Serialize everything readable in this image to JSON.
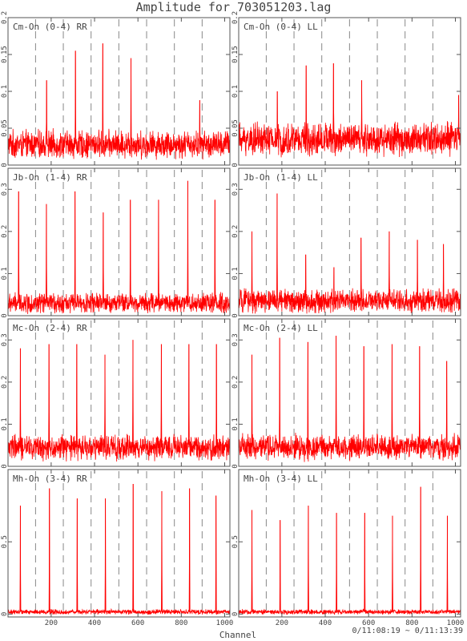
{
  "page": {
    "title": "Amplitude for 703051203.lag",
    "xlabel": "Channel",
    "time_range": "0/11:08:19 ~ 0/11:13:39"
  },
  "colors": {
    "trace": "#ff0000",
    "frame": "#555555",
    "divider": "#888888",
    "text": "#444444"
  },
  "chart_data": [
    {
      "type": "line",
      "title": "Cm-On (0-4) RR",
      "xlim": [
        1,
        1024
      ],
      "ylim": [
        0,
        0.2
      ],
      "xticks": [
        200,
        400,
        600,
        800,
        1000
      ],
      "yticks": [
        {
          "v": 0,
          "label": "0"
        },
        {
          "v": 0.05,
          "label": "0.05"
        },
        {
          "v": 0.1,
          "label": "0.1"
        },
        {
          "v": 0.15,
          "label": "0.15"
        },
        {
          "v": 0.2,
          "label": "0.2"
        }
      ],
      "dividers": [
        128,
        256,
        384,
        512,
        640,
        768,
        896
      ],
      "baseline": 0.028,
      "noise": 0.022,
      "peaks": [
        [
          179,
          0.115
        ],
        [
          312,
          0.155
        ],
        [
          438,
          0.165
        ],
        [
          568,
          0.145
        ],
        [
          885,
          0.088
        ]
      ]
    },
    {
      "type": "line",
      "title": "Cm-On (0-4) LL",
      "xlim": [
        1,
        1024
      ],
      "ylim": [
        0,
        0.2
      ],
      "xticks": [
        200,
        400,
        600,
        800,
        1000
      ],
      "yticks": [
        {
          "v": 0,
          "label": "0"
        },
        {
          "v": 0.05,
          "label": "0.05"
        },
        {
          "v": 0.1,
          "label": "0.1"
        },
        {
          "v": 0.15,
          "label": "0.15"
        },
        {
          "v": 0.2,
          "label": "0.2"
        }
      ],
      "dividers": [
        128,
        256,
        384,
        512,
        640,
        768,
        896
      ],
      "baseline": 0.035,
      "noise": 0.026,
      "peaks": [
        [
          179,
          0.1
        ],
        [
          312,
          0.135
        ],
        [
          438,
          0.138
        ],
        [
          568,
          0.115
        ],
        [
          1015,
          0.095
        ]
      ]
    },
    {
      "type": "line",
      "title": "Jb-On (1-4) RR",
      "xlim": [
        1,
        1024
      ],
      "ylim": [
        0,
        0.35
      ],
      "xticks": [
        200,
        400,
        600,
        800,
        1000
      ],
      "yticks": [
        {
          "v": 0,
          "label": "0"
        },
        {
          "v": 0.1,
          "label": "0.1"
        },
        {
          "v": 0.2,
          "label": "0.2"
        },
        {
          "v": 0.3,
          "label": "0.3"
        }
      ],
      "dividers": [
        128,
        256,
        384,
        512,
        640,
        768,
        896
      ],
      "baseline": 0.03,
      "noise": 0.028,
      "peaks": [
        [
          50,
          0.295
        ],
        [
          178,
          0.265
        ],
        [
          310,
          0.295
        ],
        [
          440,
          0.245
        ],
        [
          565,
          0.275
        ],
        [
          695,
          0.275
        ],
        [
          830,
          0.32
        ],
        [
          955,
          0.275
        ]
      ]
    },
    {
      "type": "line",
      "title": "Jb-On (1-4) LL",
      "xlim": [
        1,
        1024
      ],
      "ylim": [
        0,
        0.35
      ],
      "xticks": [
        200,
        400,
        600,
        800,
        1000
      ],
      "yticks": [
        {
          "v": 0,
          "label": "0"
        },
        {
          "v": 0.1,
          "label": "0.1"
        },
        {
          "v": 0.2,
          "label": "0.2"
        },
        {
          "v": 0.3,
          "label": "0.3"
        }
      ],
      "dividers": [
        128,
        256,
        384,
        512,
        640,
        768,
        896
      ],
      "baseline": 0.035,
      "noise": 0.032,
      "peaks": [
        [
          62,
          0.2
        ],
        [
          178,
          0.29
        ],
        [
          310,
          0.145
        ],
        [
          440,
          0.115
        ],
        [
          565,
          0.185
        ],
        [
          695,
          0.2
        ],
        [
          825,
          0.18
        ],
        [
          945,
          0.17
        ]
      ]
    },
    {
      "type": "line",
      "title": "Mc-On (2-4) RR",
      "xlim": [
        1,
        1024
      ],
      "ylim": [
        0,
        0.35
      ],
      "xticks": [
        200,
        400,
        600,
        800,
        1000
      ],
      "yticks": [
        {
          "v": 0,
          "label": "0"
        },
        {
          "v": 0.1,
          "label": "0.1"
        },
        {
          "v": 0.2,
          "label": "0.2"
        },
        {
          "v": 0.3,
          "label": "0.3"
        }
      ],
      "dividers": [
        128,
        256,
        384,
        512,
        640,
        768,
        896
      ],
      "baseline": 0.045,
      "noise": 0.035,
      "peaks": [
        [
          58,
          0.28
        ],
        [
          190,
          0.29
        ],
        [
          318,
          0.29
        ],
        [
          448,
          0.265
        ],
        [
          577,
          0.3
        ],
        [
          708,
          0.29
        ],
        [
          835,
          0.29
        ],
        [
          962,
          0.29
        ]
      ]
    },
    {
      "type": "line",
      "title": "Mc-On (2-4) LL",
      "xlim": [
        1,
        1024
      ],
      "ylim": [
        0,
        0.35
      ],
      "xticks": [
        200,
        400,
        600,
        800,
        1000
      ],
      "yticks": [
        {
          "v": 0,
          "label": "0"
        },
        {
          "v": 0.1,
          "label": "0.1"
        },
        {
          "v": 0.2,
          "label": "0.2"
        },
        {
          "v": 0.3,
          "label": "0.3"
        }
      ],
      "dividers": [
        128,
        256,
        384,
        512,
        640,
        768,
        896
      ],
      "baseline": 0.045,
      "noise": 0.035,
      "peaks": [
        [
          62,
          0.265
        ],
        [
          190,
          0.305
        ],
        [
          320,
          0.295
        ],
        [
          450,
          0.31
        ],
        [
          578,
          0.285
        ],
        [
          708,
          0.29
        ],
        [
          835,
          0.285
        ],
        [
          960,
          0.25
        ]
      ]
    },
    {
      "type": "line",
      "title": "Mh-On (3-4) RR",
      "xlim": [
        1,
        1024
      ],
      "ylim": [
        -0.02,
        1.0
      ],
      "xticks": [
        200,
        400,
        600,
        800,
        1000
      ],
      "yticks": [
        {
          "v": 0,
          "label": "0"
        },
        {
          "v": 0.5,
          "label": "0.5"
        }
      ],
      "dividers": [
        128,
        256,
        384,
        512,
        640,
        768,
        896
      ],
      "baseline": 0.015,
      "noise": 0.02,
      "peaks": [
        [
          58,
          0.75
        ],
        [
          192,
          0.87
        ],
        [
          320,
          0.8
        ],
        [
          450,
          0.8
        ],
        [
          578,
          0.9
        ],
        [
          710,
          0.85
        ],
        [
          838,
          0.87
        ],
        [
          960,
          0.82
        ]
      ]
    },
    {
      "type": "line",
      "title": "Mh-On (3-4) LL",
      "xlim": [
        1,
        1024
      ],
      "ylim": [
        -0.02,
        1.0
      ],
      "xticks": [
        200,
        400,
        600,
        800,
        1000
      ],
      "yticks": [
        {
          "v": 0,
          "label": "0"
        },
        {
          "v": 0.5,
          "label": "0.5"
        }
      ],
      "dividers": [
        128,
        256,
        384,
        512,
        640,
        768,
        896
      ],
      "baseline": 0.015,
      "noise": 0.02,
      "peaks": [
        [
          62,
          0.72
        ],
        [
          192,
          0.65
        ],
        [
          322,
          0.75
        ],
        [
          452,
          0.7
        ],
        [
          582,
          0.7
        ],
        [
          710,
          0.68
        ],
        [
          840,
          0.88
        ],
        [
          963,
          0.68
        ]
      ]
    }
  ]
}
